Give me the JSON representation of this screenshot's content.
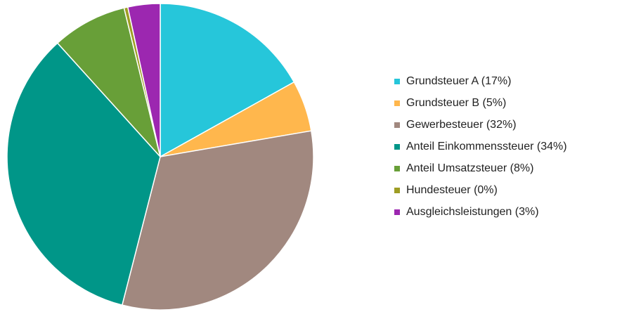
{
  "chart_data": {
    "type": "pie",
    "categories": [
      "Grundsteuer A",
      "Grundsteuer B",
      "Gewerbesteuer",
      "Anteil Einkommenssteuer",
      "Anteil Umsatzsteuer",
      "Hundesteuer",
      "Ausgleichsleistungen"
    ],
    "values": [
      16.9,
      5.4,
      31.7,
      34.3,
      7.9,
      0.4,
      3.4
    ],
    "value_labels": [
      "(17%)",
      "(5%)",
      "(32%)",
      "(34%)",
      "(8%)",
      "(0%)",
      "(3%)"
    ],
    "colors": [
      "#26c6da",
      "#ffb74d",
      "#a1887f",
      "#009688",
      "#689f38",
      "#9e9d24",
      "#9c27b0"
    ],
    "legend": "right"
  }
}
